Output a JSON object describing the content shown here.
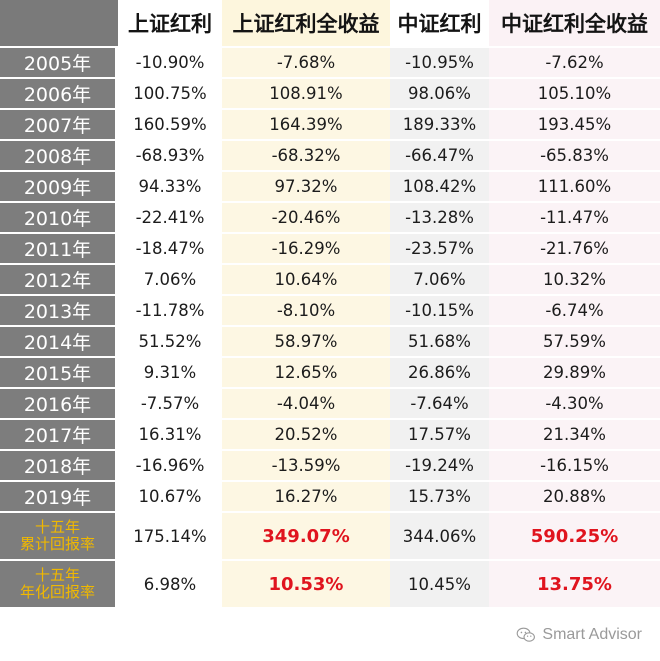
{
  "table": {
    "headers": [
      "",
      "上证红利",
      "上证红利全收益",
      "中证红利",
      "中证红利全收益"
    ],
    "rows": [
      {
        "year": "2005年",
        "v": [
          "-10.90%",
          "-7.68%",
          "-10.95%",
          "-7.62%"
        ]
      },
      {
        "year": "2006年",
        "v": [
          "100.75%",
          "108.91%",
          "98.06%",
          "105.10%"
        ]
      },
      {
        "year": "2007年",
        "v": [
          "160.59%",
          "164.39%",
          "189.33%",
          "193.45%"
        ]
      },
      {
        "year": "2008年",
        "v": [
          "-68.93%",
          "-68.32%",
          "-66.47%",
          "-65.83%"
        ]
      },
      {
        "year": "2009年",
        "v": [
          "94.33%",
          "97.32%",
          "108.42%",
          "111.60%"
        ]
      },
      {
        "year": "2010年",
        "v": [
          "-22.41%",
          "-20.46%",
          "-13.28%",
          "-11.47%"
        ]
      },
      {
        "year": "2011年",
        "v": [
          "-18.47%",
          "-16.29%",
          "-23.57%",
          "-21.76%"
        ]
      },
      {
        "year": "2012年",
        "v": [
          "7.06%",
          "10.64%",
          "7.06%",
          "10.32%"
        ]
      },
      {
        "year": "2013年",
        "v": [
          "-11.78%",
          "-8.10%",
          "-10.15%",
          "-6.74%"
        ]
      },
      {
        "year": "2014年",
        "v": [
          "51.52%",
          "58.97%",
          "51.68%",
          "57.59%"
        ]
      },
      {
        "year": "2015年",
        "v": [
          "9.31%",
          "12.65%",
          "26.86%",
          "29.89%"
        ]
      },
      {
        "year": "2016年",
        "v": [
          "-7.57%",
          "-4.04%",
          "-7.64%",
          "-4.30%"
        ]
      },
      {
        "year": "2017年",
        "v": [
          "16.31%",
          "20.52%",
          "17.57%",
          "21.34%"
        ]
      },
      {
        "year": "2018年",
        "v": [
          "-16.96%",
          "-13.59%",
          "-19.24%",
          "-16.15%"
        ]
      },
      {
        "year": "2019年",
        "v": [
          "10.67%",
          "16.27%",
          "15.73%",
          "20.88%"
        ]
      }
    ],
    "summary": [
      {
        "label_top": "十五年",
        "label_bottom": "累计回报率",
        "v": [
          "175.14%",
          "349.07%",
          "344.06%",
          "590.25%"
        ]
      },
      {
        "label_top": "十五年",
        "label_bottom": "年化回报率",
        "v": [
          "6.98%",
          "10.53%",
          "10.45%",
          "13.75%"
        ]
      }
    ]
  },
  "colors": {
    "year_col_bg": "#7d7d7d",
    "summary_label": "#f0b800",
    "highlight_red": "#e0141e",
    "col2_bg": "#fdf7e3",
    "col3_bg": "#f1f1f1",
    "col4_bg": "#fbf3f6"
  },
  "watermark": {
    "text": "Smart Advisor",
    "icon": "wechat-icon"
  }
}
